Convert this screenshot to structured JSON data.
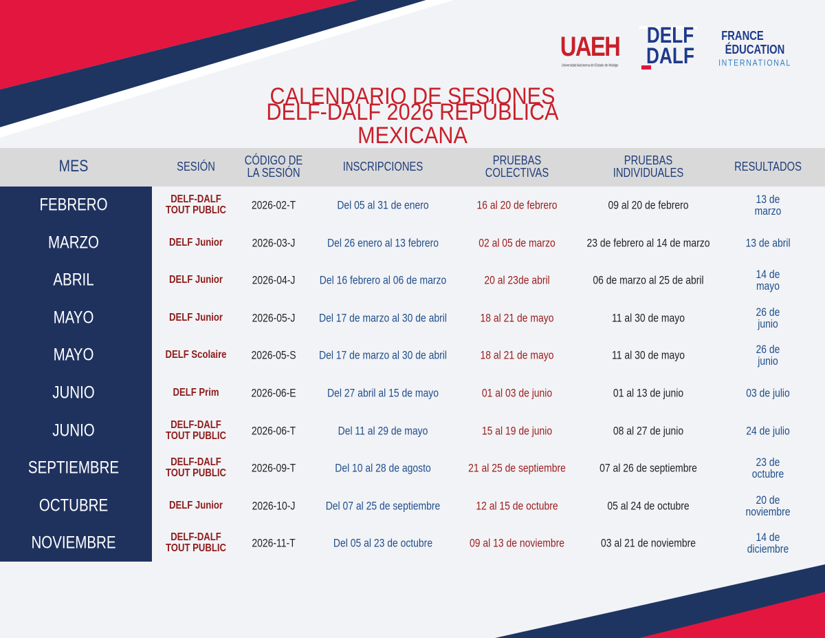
{
  "logos": {
    "uaeh": "UAEH",
    "uaeh_subtitle": "Universidad Autónoma del Estado de Hidalgo",
    "delf": "DELF",
    "dalf": "DALF",
    "france": "FRANCE",
    "education": "ÉDUCATION",
    "international": "INTERNATIONAL"
  },
  "title": [
    "CALENDARIO DE SESIONES",
    "DELF-DALF  2026 REPÚBLICA MEXICANA"
  ],
  "table": {
    "headers": [
      "MES",
      "SESIÓN",
      "CÓDIGO DE\nLA SESIÓN",
      "INSCRIPCIONES",
      "PRUEBAS\nCOLECTIVAS",
      "PRUEBAS\nINDIVIDUALES",
      "RESULTADOS"
    ],
    "rows": [
      [
        "FEBRERO",
        "DELF-DALF\nTOUT PUBLIC",
        "2026-02-T",
        "Del 05 al 31 de enero",
        "16 al 20 de febrero",
        "09 al 20 de febrero",
        "13 de marzo"
      ],
      [
        "MARZO",
        "DELF Junior",
        "2026-03-J",
        "Del 26 enero al 13 febrero",
        "02 al 05 de marzo",
        "23 de febrero al 14 de marzo",
        "13 de abril"
      ],
      [
        "ABRIL",
        "DELF Junior",
        "2026-04-J",
        "Del 16 febrero al 06 de marzo",
        "20 al 23de abril",
        "06 de marzo al 25 de abril",
        "14 de mayo"
      ],
      [
        "MAYO",
        "DELF Junior",
        "2026-05-J",
        "Del 17 de marzo al 30 de abril",
        "18 al 21 de mayo",
        "11 al 30 de mayo",
        "26 de junio"
      ],
      [
        "MAYO",
        "DELF Scolaire",
        "2026-05-S",
        "Del 17 de marzo al 30 de abril",
        "18 al 21 de mayo",
        "11 al 30 de mayo",
        "26 de junio"
      ],
      [
        "JUNIO",
        "DELF Prim",
        "2026-06-E",
        "Del 27 abril al 15 de mayo",
        "01 al 03 de junio",
        "01 al 13 de junio",
        "03 de julio"
      ],
      [
        "JUNIO",
        "DELF-DALF\nTOUT PUBLIC",
        "2026-06-T",
        "Del 11 al 29 de mayo",
        "15 al 19 de junio",
        "08 al 27 de junio",
        "24 de julio"
      ],
      [
        "SEPTIEMBRE",
        "DELF-DALF\nTOUT PUBLIC",
        "2026-09-T",
        "Del 10 al 28 de agosto",
        "21 al 25 de septiembre",
        "07 al 26 de septiembre",
        "23 de octubre"
      ],
      [
        "OCTUBRE",
        "DELF Junior",
        "2026-10-J",
        "Del 07 al 25 de septiembre",
        "12 al 15 de octubre",
        "05 al 24 de octubre",
        "20 de noviembre"
      ],
      [
        "NOVIEMBRE",
        "DELF-DALF\nTOUT PUBLIC",
        "2026-11-T",
        "Del 05 al 23 de octubre",
        "09 al 13 de noviembre",
        "03 al 21 de noviembre",
        "14 de diciembre"
      ]
    ]
  }
}
